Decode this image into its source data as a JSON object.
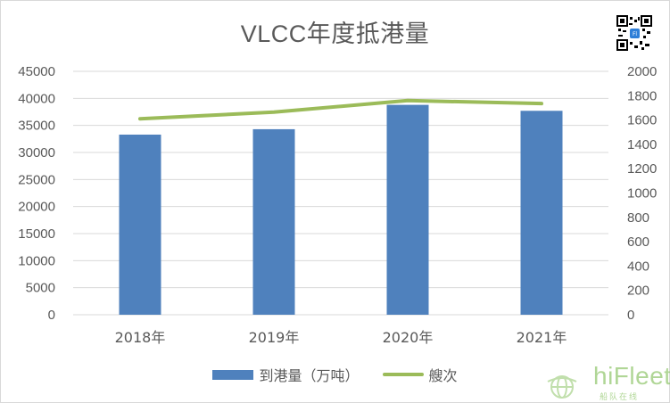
{
  "chart_data": {
    "type": "bar",
    "title": "VLCC年度抵港量",
    "categories": [
      "2018年",
      "2019年",
      "2020年",
      "2021年"
    ],
    "series": [
      {
        "name": "到港量（万吨）",
        "type": "bar",
        "axis": "left",
        "values": [
          33300,
          34300,
          38800,
          37700
        ],
        "color": "#4f81bd"
      },
      {
        "name": "艘次",
        "type": "line",
        "axis": "right",
        "values": [
          1610,
          1665,
          1760,
          1735
        ],
        "color": "#9bbb59"
      }
    ],
    "y_left": {
      "min": 0,
      "max": 45000,
      "step": 5000,
      "ticks": [
        "0",
        "5000",
        "10000",
        "15000",
        "20000",
        "25000",
        "30000",
        "35000",
        "40000",
        "45000"
      ]
    },
    "y_right": {
      "min": 0,
      "max": 2000,
      "step": 200,
      "ticks": [
        "0",
        "200",
        "400",
        "600",
        "800",
        "1000",
        "1200",
        "1400",
        "1600",
        "1800",
        "2000"
      ]
    },
    "grid": true,
    "legend_position": "bottom"
  },
  "brand": {
    "name": "hiFleet",
    "subtitle": "船队在线",
    "qr_icon": "qr-code-icon",
    "logo_icon": "globe-icon"
  }
}
